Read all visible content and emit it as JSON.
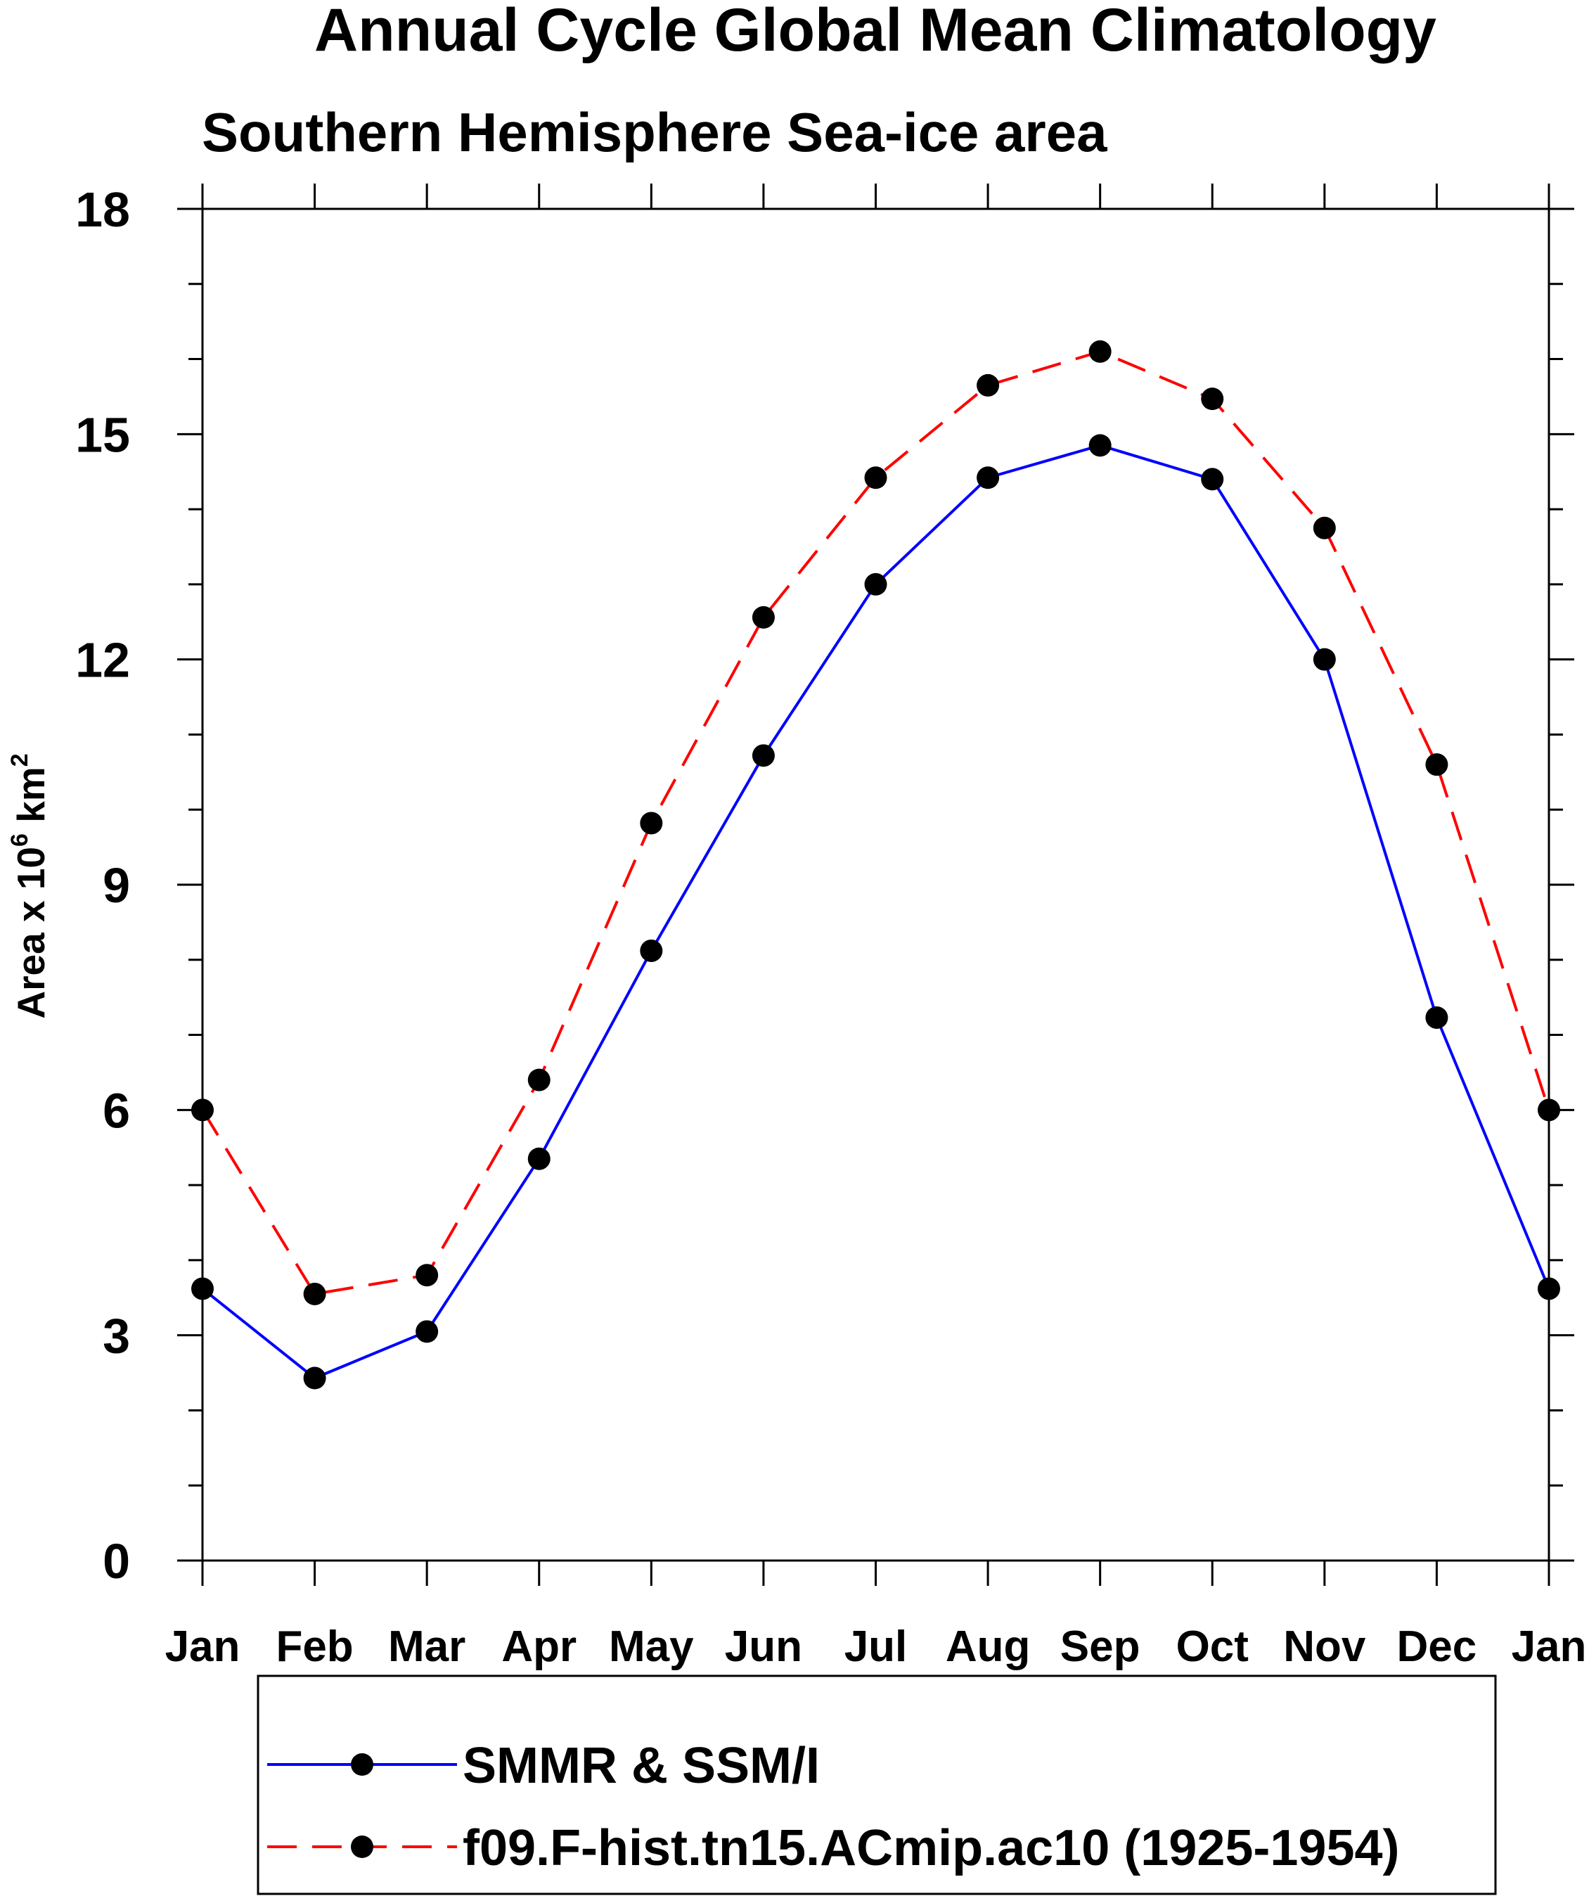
{
  "chart_data": {
    "type": "line",
    "title": "Annual Cycle Global Mean Climatology",
    "subtitle": "Southern Hemisphere Sea-ice area",
    "xlabel": "",
    "ylabel": {
      "prefix": "Area x 10",
      "exp1": "6",
      "mid": " km",
      "exp2": "2"
    },
    "categories": [
      "Jan",
      "Feb",
      "Mar",
      "Apr",
      "May",
      "Jun",
      "Jul",
      "Aug",
      "Sep",
      "Oct",
      "Nov",
      "Dec",
      "Jan"
    ],
    "ylim": [
      0,
      18
    ],
    "yticks": [
      0,
      3,
      6,
      9,
      12,
      15,
      18
    ],
    "ytick_labels": [
      "0",
      "3",
      "6",
      "9",
      "12",
      "15",
      "18"
    ],
    "y_minor_step": 1,
    "grid": false,
    "legend_position": "bottom",
    "series": [
      {
        "name": "SMMR & SSM/I",
        "color": "#0000ff",
        "dash": "solid",
        "marker": "filled-circle",
        "values": [
          3.62,
          2.43,
          3.05,
          5.35,
          8.12,
          10.72,
          13.0,
          14.42,
          14.85,
          14.4,
          12.0,
          7.23,
          3.62
        ]
      },
      {
        "name": "f09.F-hist.tn15.ACmip.ac10 (1925-1954)",
        "color": "#ff0000",
        "dash": "dashed",
        "marker": "filled-circle",
        "values": [
          6.0,
          3.55,
          3.8,
          6.4,
          9.82,
          12.56,
          14.42,
          15.65,
          16.1,
          15.47,
          13.75,
          10.6,
          6.0
        ]
      }
    ]
  }
}
